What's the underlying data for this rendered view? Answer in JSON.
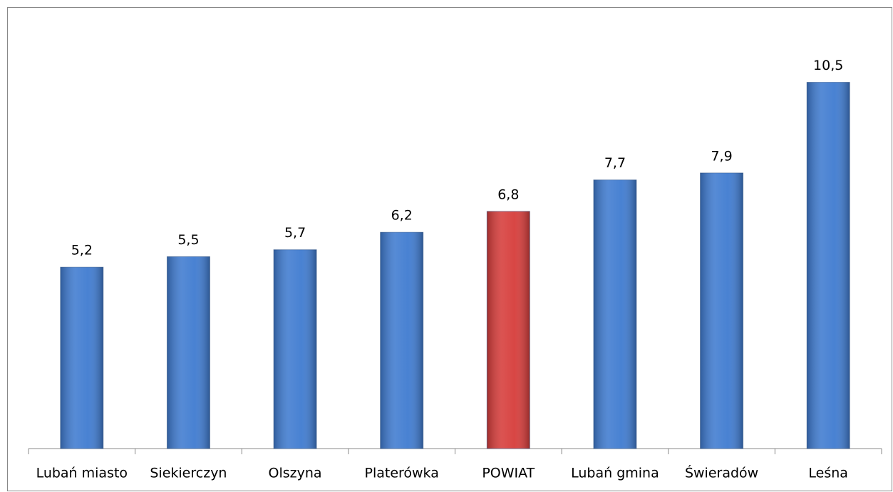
{
  "chart_data": {
    "type": "bar",
    "categories": [
      "Lubań miasto",
      "Siekierczyn",
      "Olszyna",
      "Platerówka",
      "POWIAT",
      "Lubań gmina",
      "Świeradów",
      "Leśna"
    ],
    "values": [
      5.2,
      5.5,
      5.7,
      6.2,
      6.8,
      7.7,
      7.9,
      10.5
    ],
    "value_labels": [
      "5,2",
      "5,5",
      "5,7",
      "6,2",
      "6,8",
      "7,7",
      "7,9",
      "10,5"
    ],
    "colors": [
      "#3f7bd0",
      "#3f7bd0",
      "#3f7bd0",
      "#3f7bd0",
      "#d63c3a",
      "#3f7bd0",
      "#3f7bd0",
      "#3f7bd0"
    ],
    "ylim": [
      0,
      12
    ]
  }
}
